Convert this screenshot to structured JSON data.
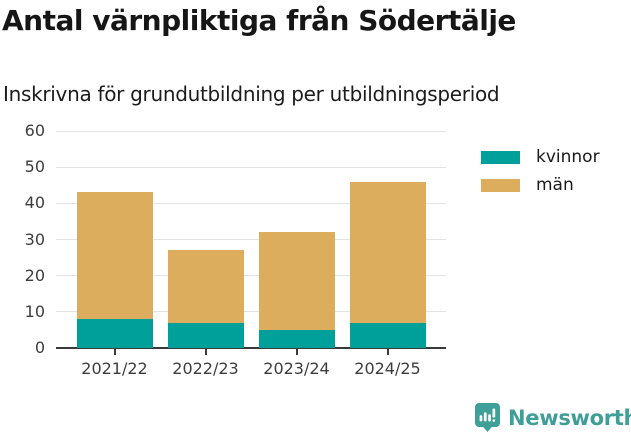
{
  "chart": {
    "title": "Antal värnpliktiga från Södertälje",
    "subtitle": "Inskrivna för grundutbildning per utbildningsperiod"
  },
  "chart_data": {
    "type": "bar",
    "stacked": true,
    "title": "Antal värnpliktiga från Södertälje",
    "subtitle": "Inskrivna för grundutbildning per utbildningsperiod",
    "categories": [
      "2021/22",
      "2022/23",
      "2023/24",
      "2024/25"
    ],
    "series": [
      {
        "name": "kvinnor",
        "color": "#00a09a",
        "values": [
          8,
          7,
          5,
          7
        ]
      },
      {
        "name": "män",
        "color": "#dcad5c",
        "values": [
          35,
          20,
          27,
          39
        ]
      }
    ],
    "totals": [
      43,
      27,
      32,
      46
    ],
    "xlabel": "",
    "ylabel": "",
    "ylim": [
      0,
      60
    ],
    "yticks": [
      0,
      10,
      20,
      30,
      40,
      50,
      60
    ],
    "grid": "horizontal",
    "legend_position": "right-top"
  },
  "colors": {
    "kvinnor": "#00a09a",
    "man": "#dcad5c",
    "brand_teal": "#3f9f98",
    "axis": "#3a3a3a",
    "gridline": "#e2e2e2"
  },
  "footer": {
    "brand": "Newsworthy",
    "logo_icon": "bar-chart-speech-bubble-icon"
  }
}
